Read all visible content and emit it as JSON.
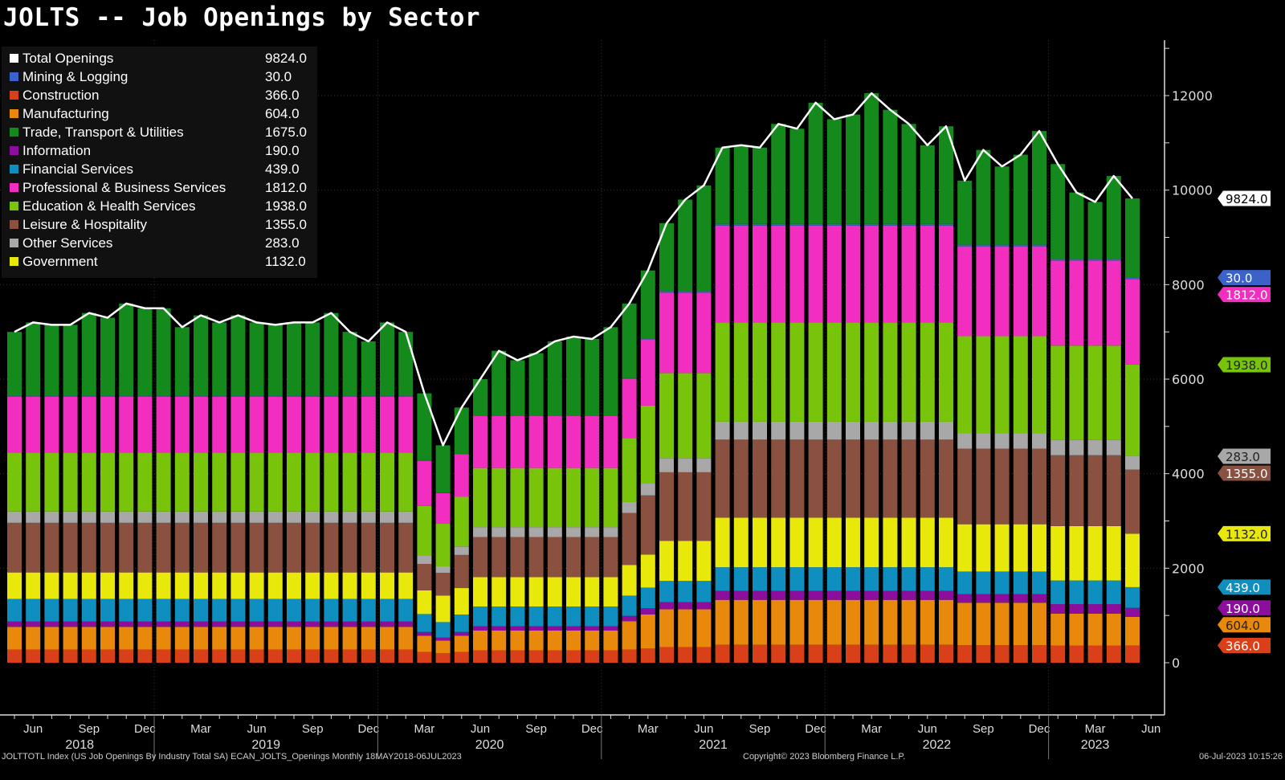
{
  "title": "JOLTS -- Job Openings by Sector",
  "footer": {
    "source": "JOLTTOTL Index (US Job Openings By Industry Total SA) ECAN_JOLTS_Openings  Monthly 18MAY2018-06JUL2023",
    "copyright": "Copyright© 2023 Bloomberg Finance L.P.",
    "timestamp": "06-Jul-2023 10:15:26"
  },
  "legend": [
    {
      "name": "Total Openings",
      "value": "9824.0",
      "color": "#ffffff"
    },
    {
      "name": "Mining & Logging",
      "value": "30.0",
      "color": "#3a62c8"
    },
    {
      "name": "Construction",
      "value": "366.0",
      "color": "#d9401a"
    },
    {
      "name": "Manufacturing",
      "value": "604.0",
      "color": "#e8890c"
    },
    {
      "name": "Trade, Transport & Utilities",
      "value": "1675.0",
      "color": "#148a1c"
    },
    {
      "name": "Information",
      "value": "190.0",
      "color": "#8b0f9c"
    },
    {
      "name": "Financial Services",
      "value": "439.0",
      "color": "#0f8fbf"
    },
    {
      "name": "Professional & Business Services",
      "value": "1812.0",
      "color": "#f22ec0"
    },
    {
      "name": "Education & Health Services",
      "value": "1938.0",
      "color": "#78c40a"
    },
    {
      "name": "Leisure & Hospitality",
      "value": "1355.0",
      "color": "#8a5040"
    },
    {
      "name": "Other Services",
      "value": "283.0",
      "color": "#a8a8a8"
    },
    {
      "name": "Government",
      "value": "1132.0",
      "color": "#e8e80a"
    }
  ],
  "chart_data": {
    "type": "bar",
    "stacked": true,
    "title": "JOLTS -- Job Openings by Sector",
    "start_month": "2018-05",
    "end_month": "2023-05",
    "frequency": "monthly",
    "ylim": [
      0,
      13000
    ],
    "yticks": [
      0,
      2000,
      4000,
      6000,
      8000,
      10000,
      12000
    ],
    "y_axis_side": "right",
    "xtick_months": [
      "Jun",
      "Sep",
      "Dec",
      "Mar"
    ],
    "years": [
      "2018",
      "2019",
      "2020",
      "2021",
      "2022",
      "2023"
    ],
    "legend_placement": "top-left",
    "grid": true,
    "line_series": {
      "name": "Total Openings",
      "color": "#ffffff",
      "last_label": "9824.0",
      "values": [
        7000,
        7200,
        7150,
        7150,
        7400,
        7300,
        7600,
        7500,
        7500,
        7100,
        7350,
        7200,
        7350,
        7200,
        7150,
        7200,
        7200,
        7400,
        7000,
        6800,
        7200,
        7000,
        5700,
        4600,
        5400,
        6000,
        6600,
        6400,
        6550,
        6800,
        6900,
        6850,
        7100,
        7600,
        8300,
        9300,
        9800,
        10100,
        10900,
        10950,
        10900,
        11400,
        11300,
        11850,
        11500,
        11600,
        12050,
        11700,
        11400,
        10950,
        11350,
        10200,
        10850,
        10500,
        10750,
        11250,
        10550,
        9950,
        9750,
        10300,
        9824
      ]
    },
    "series": [
      {
        "name": "Construction",
        "color": "#d9401a",
        "last_label": "366.0",
        "values": [
          280,
          280,
          280,
          280,
          280,
          280,
          280,
          280,
          280,
          280,
          280,
          280,
          280,
          280,
          280,
          280,
          280,
          280,
          280,
          280,
          280,
          280,
          230,
          200,
          230,
          260,
          260,
          260,
          260,
          260,
          260,
          260,
          260,
          280,
          300,
          330,
          330,
          330,
          380,
          380,
          380,
          380,
          380,
          380,
          380,
          380,
          380,
          380,
          380,
          380,
          380,
          370,
          370,
          370,
          370,
          370,
          360,
          360,
          360,
          360,
          366
        ]
      },
      {
        "name": "Manufacturing",
        "color": "#e8890c",
        "last_label": "604.0",
        "values": [
          480,
          480,
          480,
          480,
          480,
          480,
          480,
          480,
          480,
          480,
          480,
          480,
          480,
          480,
          480,
          480,
          480,
          480,
          480,
          480,
          480,
          480,
          340,
          270,
          340,
          420,
          420,
          420,
          420,
          420,
          420,
          420,
          420,
          600,
          720,
          800,
          800,
          800,
          950,
          950,
          950,
          950,
          950,
          950,
          950,
          950,
          950,
          950,
          950,
          950,
          950,
          900,
          900,
          900,
          900,
          900,
          680,
          680,
          680,
          680,
          604
        ]
      },
      {
        "name": "Information",
        "color": "#8b0f9c",
        "last_label": "190.0",
        "values": [
          110,
          110,
          110,
          110,
          110,
          110,
          110,
          110,
          110,
          110,
          110,
          110,
          110,
          110,
          110,
          110,
          110,
          110,
          110,
          110,
          110,
          110,
          80,
          60,
          80,
          90,
          90,
          90,
          90,
          90,
          90,
          90,
          90,
          110,
          130,
          150,
          150,
          150,
          190,
          190,
          190,
          190,
          190,
          190,
          190,
          190,
          190,
          190,
          190,
          190,
          190,
          180,
          180,
          180,
          180,
          180,
          200,
          200,
          200,
          200,
          190
        ]
      },
      {
        "name": "Financial Services",
        "color": "#0f8fbf",
        "last_label": "439.0",
        "values": [
          480,
          480,
          480,
          480,
          480,
          480,
          480,
          480,
          480,
          480,
          480,
          480,
          480,
          480,
          480,
          480,
          480,
          480,
          480,
          480,
          480,
          480,
          380,
          330,
          370,
          420,
          420,
          420,
          420,
          420,
          420,
          420,
          420,
          430,
          440,
          450,
          450,
          450,
          500,
          500,
          500,
          500,
          500,
          500,
          500,
          500,
          500,
          500,
          500,
          500,
          500,
          480,
          480,
          480,
          480,
          480,
          500,
          500,
          500,
          500,
          439
        ]
      },
      {
        "name": "Government",
        "color": "#e8e80a",
        "last_label": "1132.0",
        "values": [
          560,
          560,
          560,
          560,
          560,
          560,
          560,
          560,
          560,
          560,
          560,
          560,
          560,
          560,
          560,
          560,
          560,
          560,
          560,
          560,
          560,
          560,
          500,
          560,
          560,
          620,
          620,
          620,
          620,
          620,
          620,
          620,
          620,
          650,
          700,
          850,
          850,
          850,
          1050,
          1050,
          1050,
          1050,
          1050,
          1050,
          1050,
          1050,
          1050,
          1050,
          1050,
          1050,
          1050,
          1000,
          1000,
          1000,
          1000,
          1000,
          1150,
          1150,
          1150,
          1150,
          1132
        ]
      },
      {
        "name": "Leisure & Hospitality",
        "color": "#8a5040",
        "last_label": "1355.0",
        "values": [
          1050,
          1050,
          1050,
          1050,
          1050,
          1050,
          1050,
          1050,
          1050,
          1050,
          1050,
          1050,
          1050,
          1050,
          1050,
          1050,
          1050,
          1050,
          1050,
          1050,
          1050,
          1050,
          560,
          480,
          700,
          850,
          850,
          850,
          850,
          850,
          850,
          850,
          850,
          1100,
          1250,
          1450,
          1450,
          1450,
          1650,
          1650,
          1650,
          1650,
          1650,
          1650,
          1650,
          1650,
          1650,
          1650,
          1650,
          1650,
          1650,
          1600,
          1600,
          1600,
          1600,
          1600,
          1500,
          1500,
          1500,
          1500,
          1355
        ]
      },
      {
        "name": "Other Services",
        "color": "#a8a8a8",
        "last_label": "283.0",
        "values": [
          240,
          240,
          240,
          240,
          240,
          240,
          240,
          240,
          240,
          240,
          240,
          240,
          240,
          240,
          240,
          240,
          240,
          240,
          240,
          240,
          240,
          240,
          180,
          140,
          180,
          210,
          210,
          210,
          210,
          210,
          210,
          210,
          210,
          230,
          250,
          300,
          300,
          300,
          380,
          380,
          380,
          380,
          380,
          380,
          380,
          380,
          380,
          380,
          380,
          380,
          380,
          330,
          330,
          330,
          330,
          330,
          320,
          320,
          320,
          320,
          283
        ]
      },
      {
        "name": "Education & Health Services",
        "color": "#78c40a",
        "last_label": "1938.0",
        "values": [
          1250,
          1250,
          1250,
          1250,
          1250,
          1250,
          1250,
          1250,
          1250,
          1250,
          1250,
          1250,
          1250,
          1250,
          1250,
          1250,
          1250,
          1250,
          1250,
          1250,
          1250,
          1250,
          1050,
          900,
          1050,
          1250,
          1250,
          1250,
          1250,
          1250,
          1250,
          1250,
          1250,
          1350,
          1650,
          1800,
          1800,
          1800,
          2100,
          2100,
          2100,
          2100,
          2100,
          2100,
          2100,
          2100,
          2100,
          2100,
          2100,
          2100,
          2100,
          2050,
          2050,
          2050,
          2050,
          2050,
          2000,
          2000,
          2000,
          2000,
          1938
        ]
      },
      {
        "name": "Professional & Business Services",
        "color": "#f22ec0",
        "last_label": "1812.0",
        "values": [
          1180,
          1180,
          1180,
          1180,
          1180,
          1180,
          1180,
          1180,
          1180,
          1180,
          1180,
          1180,
          1180,
          1180,
          1180,
          1180,
          1180,
          1180,
          1180,
          1180,
          1180,
          1180,
          950,
          650,
          900,
          1100,
          1100,
          1100,
          1100,
          1100,
          1100,
          1100,
          1100,
          1250,
          1400,
          1700,
          1700,
          1700,
          2050,
          2050,
          2050,
          2050,
          2050,
          2050,
          2050,
          2050,
          2050,
          2050,
          2050,
          2050,
          2050,
          1900,
          1900,
          1900,
          1900,
          1900,
          1800,
          1800,
          1800,
          1800,
          1812
        ]
      },
      {
        "name": "Mining & Logging",
        "color": "#3a62c8",
        "last_label": "30.0",
        "values": [
          20,
          20,
          20,
          20,
          20,
          20,
          20,
          20,
          20,
          20,
          20,
          20,
          20,
          20,
          20,
          20,
          20,
          20,
          20,
          20,
          20,
          20,
          15,
          10,
          10,
          15,
          15,
          15,
          15,
          15,
          15,
          15,
          15,
          20,
          25,
          30,
          30,
          30,
          35,
          35,
          35,
          35,
          35,
          35,
          35,
          35,
          35,
          35,
          35,
          35,
          35,
          35,
          35,
          35,
          35,
          35,
          30,
          30,
          30,
          30,
          30
        ]
      },
      {
        "name": "Trade, Transport & Utilities",
        "color": "#148a1c",
        "last_label": "1675.0",
        "values": [
          1350,
          1550,
          1500,
          1500,
          1750,
          1650,
          1950,
          1850,
          1850,
          1450,
          1700,
          1550,
          1700,
          1550,
          1500,
          1550,
          1550,
          1750,
          1350,
          1150,
          1550,
          1350,
          1415,
          1000,
          980,
          765,
          1365,
          1165,
          1315,
          1565,
          1665,
          1615,
          1865,
          1580,
          1435,
          1440,
          1940,
          2240,
          1615,
          1665,
          1615,
          2115,
          2015,
          2565,
          2215,
          2315,
          2765,
          2415,
          2115,
          1665,
          2065,
          1355,
          2005,
          1655,
          1905,
          2405,
          2010,
          1410,
          1210,
          1760,
          1675
        ]
      }
    ]
  }
}
